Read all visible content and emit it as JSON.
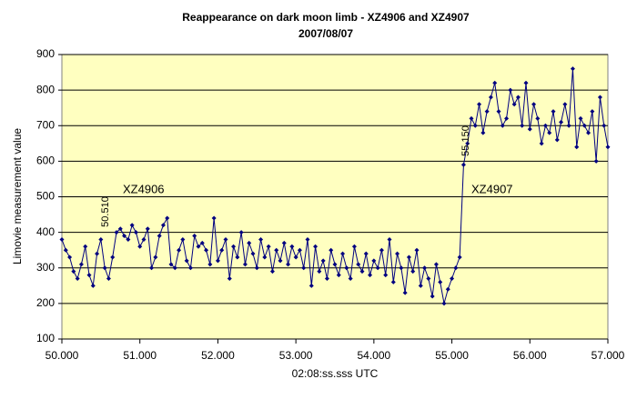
{
  "chart_data": {
    "type": "line",
    "title": "Reappearance on dark moon limb - XZ4906 and XZ4907",
    "subtitle": "2007/08/07",
    "x_label": "02:08:ss.sss UTC",
    "y_label": "Limovie measurement value",
    "color": "#000080",
    "grid": true,
    "xlim": [
      50,
      57
    ],
    "xticks": [
      {
        "value": 50,
        "label": "50.000"
      },
      {
        "value": 51,
        "label": "51.000"
      },
      {
        "value": 52,
        "label": "52.000"
      },
      {
        "value": 53,
        "label": "53.000"
      },
      {
        "value": 54,
        "label": "54.000"
      },
      {
        "value": 55,
        "label": "55.000"
      },
      {
        "value": 56,
        "label": "56.000"
      },
      {
        "value": 57,
        "label": "57.000"
      }
    ],
    "ylim": [
      100,
      900
    ],
    "yticks": [
      100,
      200,
      300,
      400,
      500,
      600,
      700,
      800,
      900
    ],
    "annotations": [
      "XZ4906",
      "XZ4907",
      "50.510",
      "55.150"
    ],
    "x": [
      50,
      50.05,
      50.1,
      50.15,
      50.2,
      50.25,
      50.3,
      50.35,
      50.4,
      50.45,
      50.5,
      50.55,
      50.6,
      50.65,
      50.7,
      50.75,
      50.8,
      50.85,
      50.9,
      50.95,
      51,
      51.05,
      51.1,
      51.15,
      51.2,
      51.25,
      51.3,
      51.35,
      51.4,
      51.45,
      51.5,
      51.55,
      51.6,
      51.65,
      51.7,
      51.75,
      51.8,
      51.85,
      51.9,
      51.95,
      52,
      52.05,
      52.1,
      52.15,
      52.2,
      52.25,
      52.3,
      52.35,
      52.4,
      52.45,
      52.5,
      52.55,
      52.6,
      52.65,
      52.7,
      52.75,
      52.8,
      52.85,
      52.9,
      52.95,
      53,
      53.05,
      53.1,
      53.15,
      53.2,
      53.25,
      53.3,
      53.35,
      53.4,
      53.45,
      53.5,
      53.55,
      53.6,
      53.65,
      53.7,
      53.75,
      53.8,
      53.85,
      53.9,
      53.95,
      54,
      54.05,
      54.1,
      54.15,
      54.2,
      54.25,
      54.3,
      54.35,
      54.4,
      54.45,
      54.5,
      54.55,
      54.6,
      54.65,
      54.7,
      54.75,
      54.8,
      54.85,
      54.9,
      54.95,
      55,
      55.05,
      55.1,
      55.15,
      55.2,
      55.25,
      55.3,
      55.35,
      55.4,
      55.45,
      55.5,
      55.55,
      55.6,
      55.65,
      55.7,
      55.75,
      55.8,
      55.85,
      55.9,
      55.95,
      56,
      56.05,
      56.1,
      56.15,
      56.2,
      56.25,
      56.3,
      56.35,
      56.4,
      56.45,
      56.5,
      56.55,
      56.6,
      56.65,
      56.7,
      56.75,
      56.8,
      56.85,
      56.9,
      56.95,
      57
    ],
    "values": [
      380,
      350,
      330,
      290,
      270,
      310,
      360,
      280,
      250,
      340,
      380,
      300,
      270,
      330,
      400,
      410,
      390,
      380,
      420,
      400,
      360,
      380,
      410,
      300,
      330,
      390,
      420,
      440,
      310,
      300,
      350,
      380,
      320,
      300,
      390,
      360,
      370,
      350,
      310,
      440,
      320,
      350,
      380,
      270,
      360,
      330,
      400,
      310,
      370,
      340,
      300,
      380,
      330,
      360,
      290,
      350,
      320,
      370,
      310,
      360,
      330,
      350,
      300,
      380,
      250,
      360,
      290,
      320,
      270,
      350,
      310,
      280,
      340,
      300,
      270,
      360,
      310,
      290,
      340,
      280,
      320,
      300,
      350,
      280,
      380,
      260,
      340,
      300,
      230,
      330,
      290,
      350,
      250,
      300,
      270,
      220,
      310,
      260,
      200,
      240,
      270,
      300,
      330,
      590,
      650,
      720,
      700,
      760,
      680,
      740,
      780,
      820,
      740,
      700,
      720,
      800,
      760,
      780,
      700,
      820,
      690,
      760,
      720,
      650,
      700,
      680,
      740,
      660,
      710,
      760,
      700,
      860,
      640,
      720,
      700,
      680,
      740,
      600,
      780,
      700,
      640
    ]
  }
}
